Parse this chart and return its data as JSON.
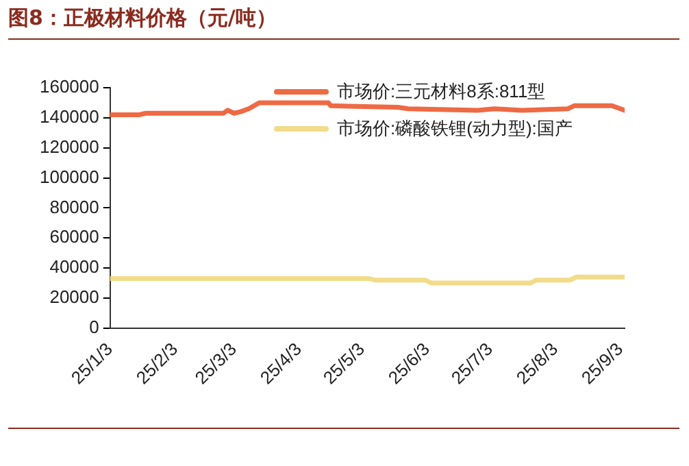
{
  "chart_data": {
    "type": "line",
    "title": "图8：正极材料价格（元/吨）",
    "series": [
      {
        "name": "市场价:三元材料8系:811型",
        "color": "#ee6a44",
        "x": [
          "--01-03",
          "--01-17",
          "--01-20",
          "--02-26",
          "--02-28",
          "--03-03",
          "--03-06",
          "--03-10",
          "--03-15",
          "--04-17",
          "--04-18",
          "--05-20",
          "--05-25",
          "--06-27",
          "--07-05",
          "--07-18",
          "--08-09",
          "--08-12",
          "--08-30",
          "--09-01",
          "--09-05"
        ],
        "values": [
          142000,
          142000,
          143000,
          143000,
          145000,
          143000,
          144000,
          146000,
          150000,
          150000,
          148000,
          147000,
          146000,
          145000,
          146000,
          145000,
          146000,
          148000,
          148000,
          147000,
          145000
        ]
      },
      {
        "name": "市场价:磷酸铁锂(动力型):国产",
        "color": "#f2dc8a",
        "x": [
          "--01-03",
          "--04-02",
          "--04-06",
          "--05-06",
          "--05-09",
          "--06-02",
          "--06-05",
          "--07-22",
          "--07-25",
          "--08-10",
          "--08-13",
          "--09-05"
        ],
        "values": [
          33000,
          33000,
          33000,
          33000,
          32000,
          32000,
          30000,
          30000,
          32000,
          32000,
          34000,
          34000
        ]
      }
    ],
    "xlim": [
      "--01-03",
      "--09-05"
    ],
    "xticks": [
      {
        "value": "--01-03",
        "label": "25/1/3"
      },
      {
        "value": "--02-03",
        "label": "25/2/3"
      },
      {
        "value": "--03-03",
        "label": "25/3/3"
      },
      {
        "value": "--04-03",
        "label": "25/4/3"
      },
      {
        "value": "--05-03",
        "label": "25/5/3"
      },
      {
        "value": "--06-03",
        "label": "25/6/3"
      },
      {
        "value": "--07-03",
        "label": "25/7/3"
      },
      {
        "value": "--08-03",
        "label": "25/8/3"
      },
      {
        "value": "--09-03",
        "label": "25/9/3"
      }
    ],
    "ylim": [
      0,
      160000
    ],
    "yticks": [
      0,
      20000,
      40000,
      60000,
      80000,
      100000,
      120000,
      140000,
      160000
    ],
    "grid": false,
    "legend": "top",
    "marker": "none",
    "line_style": "solid"
  }
}
